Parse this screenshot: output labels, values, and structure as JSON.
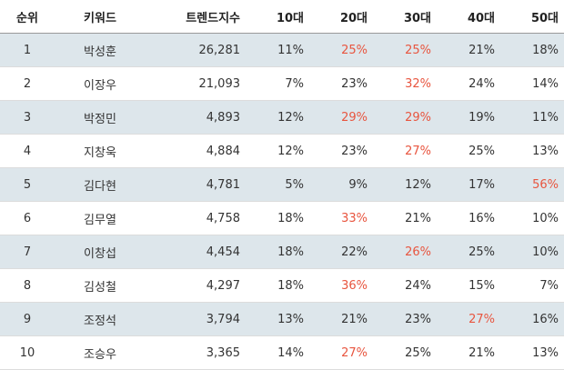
{
  "headers": [
    "순위",
    "키워드",
    "트렌드지수",
    "10대",
    "20대",
    "30대",
    "40대",
    "50대"
  ],
  "highlight_color": "#e8553f",
  "rows": [
    {
      "rank": "1",
      "keyword": "박성훈",
      "trend": "26,281",
      "ages": [
        "11%",
        "25%",
        "25%",
        "21%",
        "18%"
      ],
      "hi": [
        1,
        2
      ]
    },
    {
      "rank": "2",
      "keyword": "이장우",
      "trend": "21,093",
      "ages": [
        "7%",
        "23%",
        "32%",
        "24%",
        "14%"
      ],
      "hi": [
        2
      ]
    },
    {
      "rank": "3",
      "keyword": "박정민",
      "trend": "4,893",
      "ages": [
        "12%",
        "29%",
        "29%",
        "19%",
        "11%"
      ],
      "hi": [
        1,
        2
      ]
    },
    {
      "rank": "4",
      "keyword": "지창욱",
      "trend": "4,884",
      "ages": [
        "12%",
        "23%",
        "27%",
        "25%",
        "13%"
      ],
      "hi": [
        2
      ]
    },
    {
      "rank": "5",
      "keyword": "김다현",
      "trend": "4,781",
      "ages": [
        "5%",
        "9%",
        "12%",
        "17%",
        "56%"
      ],
      "hi": [
        4
      ]
    },
    {
      "rank": "6",
      "keyword": "김무열",
      "trend": "4,758",
      "ages": [
        "18%",
        "33%",
        "21%",
        "16%",
        "10%"
      ],
      "hi": [
        1
      ]
    },
    {
      "rank": "7",
      "keyword": "이창섭",
      "trend": "4,454",
      "ages": [
        "18%",
        "22%",
        "26%",
        "25%",
        "10%"
      ],
      "hi": [
        2
      ]
    },
    {
      "rank": "8",
      "keyword": "김성철",
      "trend": "4,297",
      "ages": [
        "18%",
        "36%",
        "24%",
        "15%",
        "7%"
      ],
      "hi": [
        1
      ]
    },
    {
      "rank": "9",
      "keyword": "조정석",
      "trend": "3,794",
      "ages": [
        "13%",
        "21%",
        "23%",
        "27%",
        "16%"
      ],
      "hi": [
        3
      ]
    },
    {
      "rank": "10",
      "keyword": "조승우",
      "trend": "3,365",
      "ages": [
        "14%",
        "27%",
        "25%",
        "21%",
        "13%"
      ],
      "hi": [
        1
      ]
    }
  ]
}
